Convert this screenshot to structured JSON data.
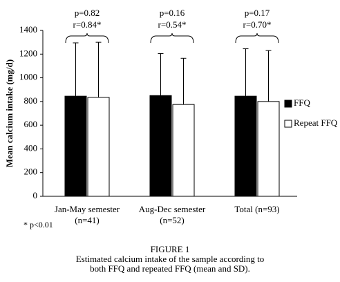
{
  "chart_data": {
    "type": "bar",
    "y_label": "Mean calcium intake (mg/d)",
    "categories": [
      [
        "Jan-May semester",
        "(n=41)"
      ],
      [
        "Aug-Dec semester",
        "(n=52)"
      ],
      [
        "Total (n=93)"
      ]
    ],
    "series": [
      {
        "name": "FFQ",
        "color": "#000000",
        "values": [
          845,
          850,
          845
        ],
        "errors": [
          450,
          355,
          400
        ]
      },
      {
        "name": "Repeat FFQ",
        "color": "#ffffff",
        "values": [
          835,
          775,
          800
        ],
        "errors": [
          465,
          390,
          430
        ]
      }
    ],
    "annotations": [
      [
        "p=0.82",
        "r=0.84*"
      ],
      [
        "p=0.16",
        "r=0.54*"
      ],
      [
        "p=0.17",
        "r=0.70*"
      ]
    ],
    "footnote": "* p<0.01",
    "ylim": [
      0,
      1400
    ],
    "yticks": [
      0,
      200,
      400,
      600,
      800,
      1000,
      1200,
      1400
    ],
    "grid": false,
    "legend": "right",
    "caption": [
      "FIGURE 1",
      "Estimated calcium intake of the sample according to",
      "both FFQ and repeated FFQ (mean and SD)."
    ]
  }
}
